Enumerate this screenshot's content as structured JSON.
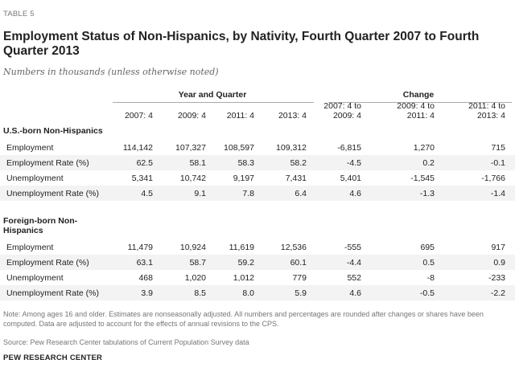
{
  "table_label": "TABLE 5",
  "title": "Employment Status of Non-Hispanics, by Nativity, Fourth Quarter 2007 to Fourth Quarter 2013",
  "subtitle": "Numbers in thousands (unless otherwise noted)",
  "group_headers": {
    "year_quarter": "Year and Quarter",
    "change": "Change"
  },
  "columns": [
    "2007: 4",
    "2009: 4",
    "2011: 4",
    "2013: 4",
    "2007: 4 to 2009: 4",
    "2009: 4 to 2011: 4",
    "2011: 4 to 2013: 4"
  ],
  "columns_split": [
    [
      "2007: 4",
      ""
    ],
    [
      "2009: 4",
      ""
    ],
    [
      "2011: 4",
      ""
    ],
    [
      "2013: 4",
      ""
    ],
    [
      "2007: 4 to",
      "2009: 4"
    ],
    [
      "2009: 4 to",
      "2011: 4"
    ],
    [
      "2011: 4 to",
      "2013: 4"
    ]
  ],
  "sections": [
    {
      "title": "U.S.-born Non-Hispanics",
      "title_lines": [
        "U.S.-born Non-Hispanics"
      ],
      "rows": [
        {
          "label": "Employment",
          "values": [
            "114,142",
            "107,327",
            "108,597",
            "109,312",
            "-6,815",
            "1,270",
            "715"
          ]
        },
        {
          "label": "Employment Rate (%)",
          "values": [
            "62.5",
            "58.1",
            "58.3",
            "58.2",
            "-4.5",
            "0.2",
            "-0.1"
          ]
        },
        {
          "label": "Unemployment",
          "values": [
            "5,341",
            "10,742",
            "9,197",
            "7,431",
            "5,401",
            "-1,545",
            "-1,766"
          ]
        },
        {
          "label": "Unemployment Rate (%)",
          "values": [
            "4.5",
            "9.1",
            "7.8",
            "6.4",
            "4.6",
            "-1.3",
            "-1.4"
          ]
        }
      ]
    },
    {
      "title": "Foreign-born Non-Hispanics",
      "title_lines": [
        "Foreign-born Non-",
        "Hispanics"
      ],
      "rows": [
        {
          "label": "Employment",
          "values": [
            "11,479",
            "10,924",
            "11,619",
            "12,536",
            "-555",
            "695",
            "917"
          ]
        },
        {
          "label": "Employment Rate (%)",
          "values": [
            "63.1",
            "58.7",
            "59.2",
            "60.1",
            "-4.4",
            "0.5",
            "0.9"
          ]
        },
        {
          "label": "Unemployment",
          "values": [
            "468",
            "1,020",
            "1,012",
            "779",
            "552",
            "-8",
            "-233"
          ]
        },
        {
          "label": "Unemployment Rate (%)",
          "values": [
            "3.9",
            "8.5",
            "8.0",
            "5.9",
            "4.6",
            "-0.5",
            "-2.2"
          ]
        }
      ]
    }
  ],
  "note": "Note: Among ages 16 and older. Estimates are nonseasonally adjusted. All numbers and percentages are rounded after changes or shares have been computed. Data are adjusted to account for the effects of annual revisions to the CPS.",
  "source": "Source: Pew Research Center tabulations of Current Population Survey data",
  "organization": "PEW RESEARCH CENTER"
}
